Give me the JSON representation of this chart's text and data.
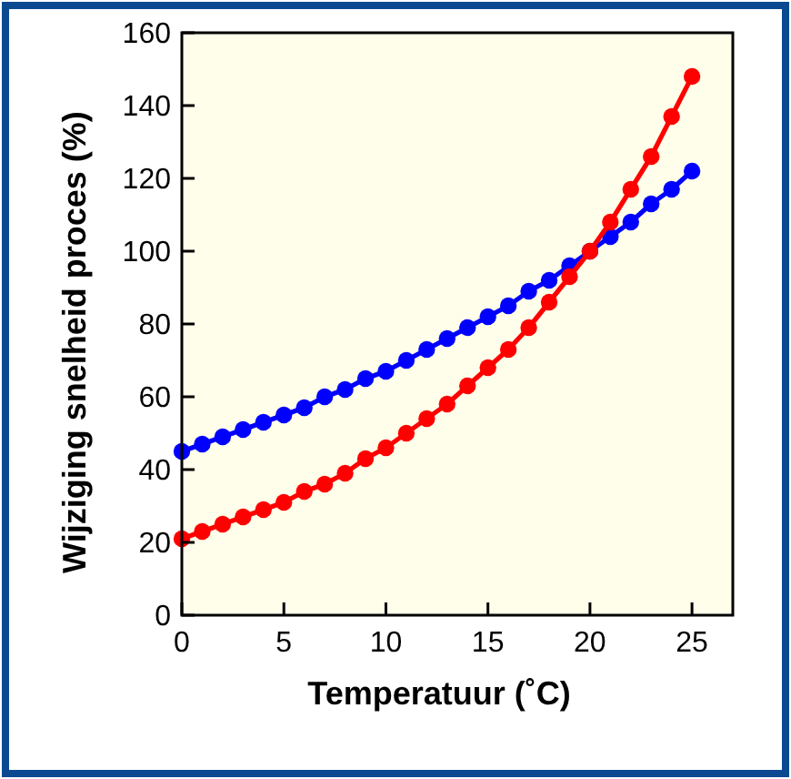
{
  "chart_data": {
    "type": "line",
    "xlabel": "Temperatuur (˚C)",
    "ylabel": "Wijziging snelheid proces (%)",
    "x": [
      0,
      1,
      2,
      3,
      4,
      5,
      6,
      7,
      8,
      9,
      10,
      11,
      12,
      13,
      14,
      15,
      16,
      17,
      18,
      19,
      20,
      21,
      22,
      23,
      24,
      25
    ],
    "series": [
      {
        "color": "#0000ff",
        "values": [
          45,
          47,
          49,
          51,
          53,
          55,
          57,
          60,
          62,
          65,
          67,
          70,
          73,
          76,
          79,
          82,
          85,
          89,
          92,
          96,
          100,
          104,
          108,
          113,
          117,
          122
        ]
      },
      {
        "color": "#ff0000",
        "values": [
          21,
          23,
          25,
          27,
          29,
          31,
          34,
          36,
          39,
          43,
          46,
          50,
          54,
          58,
          63,
          68,
          73,
          79,
          86,
          93,
          100,
          108,
          117,
          126,
          137,
          148
        ]
      }
    ],
    "xlim": [
      0,
      27
    ],
    "ylim": [
      0,
      160
    ],
    "xticks": [
      0,
      5,
      10,
      15,
      20,
      25
    ],
    "yticks": [
      0,
      20,
      40,
      60,
      80,
      100,
      120,
      140,
      160
    ],
    "marker": "circle",
    "line_style": "solid"
  }
}
